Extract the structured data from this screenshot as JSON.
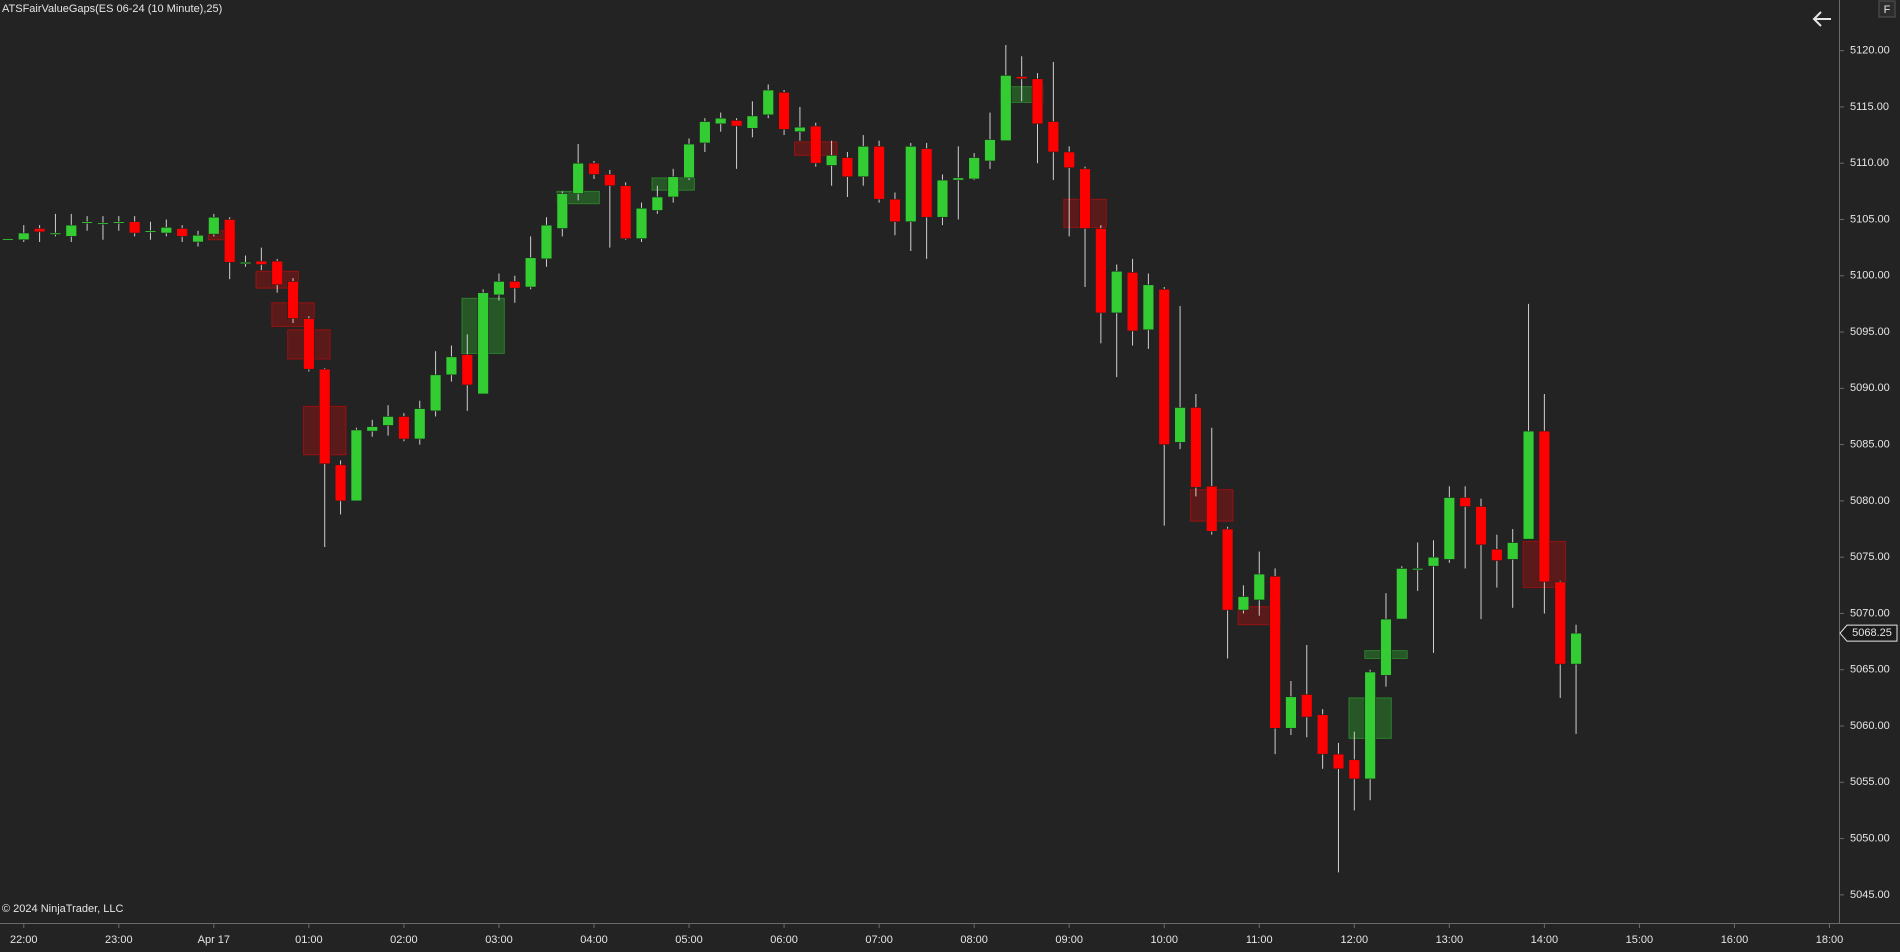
{
  "chart_data": {
    "type": "candlestick",
    "title": "ATSFairValueGaps(ES 06-24 (10 Minute),25)",
    "footer": "© 2024 NinjaTrader, LLC",
    "up_color": "#33cc33",
    "down_color": "#ff0000",
    "x": [
      21.8333,
      22,
      22.1667,
      22.3333,
      22.5,
      22.6667,
      22.8333,
      23,
      23.1667,
      23.3333,
      23.5,
      23.6667,
      23.8333,
      24,
      24.1667,
      24.3333,
      24.5,
      24.6667,
      24.8333,
      25,
      25.1667,
      25.3333,
      25.5,
      25.6667,
      25.8333,
      26,
      26.1667,
      26.3333,
      26.5,
      26.6667,
      26.8333,
      27,
      27.1667,
      27.3333,
      27.5,
      27.6667,
      27.8333,
      28,
      28.1667,
      28.3333,
      28.5,
      28.6667,
      28.8333,
      29,
      29.1667,
      29.3333,
      29.5,
      29.6667,
      29.8333,
      30,
      30.1667,
      30.3333,
      30.5,
      30.6667,
      30.8333,
      31,
      31.1667,
      31.3333,
      31.5,
      31.6667,
      31.8333,
      32,
      32.1667,
      32.3333,
      32.5,
      32.6667,
      32.8333,
      33,
      33.1667,
      33.3333,
      33.5,
      33.6667,
      33.8333,
      34,
      34.1667,
      34.3333,
      34.5,
      34.6667,
      34.8333,
      35,
      35.1667,
      35.3333,
      35.5,
      35.6667,
      35.8333,
      36,
      36.1667,
      36.3333,
      36.5,
      36.6667,
      36.8333,
      37,
      37.1667,
      37.3333,
      37.5,
      37.6667,
      37.8333,
      38,
      38.1667,
      38.3333
    ],
    "open": [
      5103.2,
      5103.2,
      5104.2,
      5103.8,
      5103.5,
      5104.8,
      5104.7,
      5104.8,
      5104.8,
      5104,
      5103.8,
      5104.2,
      5103,
      5103.7,
      5105,
      5101.2,
      5101.3,
      5101.3,
      5099.5,
      5096.2,
      5091.7,
      5083.2,
      5080,
      5086.2,
      5086.7,
      5087.5,
      5085.5,
      5088,
      5091.2,
      5093,
      5089.5,
      5098.3,
      5099.5,
      5099,
      5101.5,
      5104.2,
      5107.3,
      5110,
      5109,
      5108,
      5103.3,
      5105.8,
      5107,
      5108.7,
      5111.8,
      5113.5,
      5113.8,
      5113.1,
      5114.3,
      5116.3,
      5112.8,
      5113.3,
      5109.8,
      5110.5,
      5108.8,
      5111.5,
      5106.8,
      5104.8,
      5111.3,
      5105.2,
      5108.5,
      5108.6,
      5110.2,
      5112,
      5117.7,
      5117.5,
      5113.7,
      5111,
      5109.5,
      5104.2,
      5096.7,
      5100.3,
      5095.2,
      5098.8,
      5085.2,
      5088.3,
      5081.3,
      5077.5,
      5070.3,
      5071.2,
      5073.3,
      5059.8,
      5062.8,
      5061,
      5057.5,
      5057,
      5055.3,
      5064.5,
      5069.5,
      5074,
      5074.2,
      5074.8,
      5080.3,
      5079.5,
      5075.7,
      5074.8,
      5076.6,
      5086.2,
      5072.8,
      5065.5
    ],
    "high": [
      5103.3,
      5104.5,
      5104.5,
      5105.5,
      5105.5,
      5105.3,
      5105.3,
      5105.3,
      5105.3,
      5104.8,
      5105,
      5104.5,
      5104,
      5105.5,
      5105.2,
      5101.8,
      5102.5,
      5101.5,
      5099.8,
      5096.4,
      5091.8,
      5083.6,
      5086.5,
      5087.2,
      5088.5,
      5087.8,
      5088.9,
      5093.3,
      5093.8,
      5094.8,
      5098.8,
      5100.2,
      5100,
      5103.5,
      5105.2,
      5107.5,
      5111.7,
      5110.2,
      5109.4,
      5108.3,
      5106.5,
      5108,
      5109.5,
      5112.2,
      5114,
      5114.5,
      5114,
      5115.5,
      5117,
      5116.5,
      5115,
      5113.6,
      5112,
      5111,
      5112.5,
      5112,
      5107.4,
      5111.8,
      5111.8,
      5109,
      5111.5,
      5110.9,
      5114.5,
      5120.5,
      5119.5,
      5118,
      5119,
      5111.5,
      5109.7,
      5104.5,
      5101,
      5101.5,
      5100.2,
      5099,
      5097.3,
      5089.5,
      5086.5,
      5077.7,
      5072.5,
      5075.5,
      5074,
      5064,
      5067.2,
      5061.5,
      5058.5,
      5059.5,
      5065,
      5071.8,
      5074.2,
      5076.3,
      5076.5,
      5081.3,
      5081.3,
      5080.2,
      5077,
      5077.5,
      5097.5,
      5089.5,
      5072.9,
      5069
    ],
    "low": [
      5103.2,
      5103,
      5103,
      5103.5,
      5103,
      5104,
      5103.2,
      5104,
      5103.5,
      5103.2,
      5103.5,
      5103,
      5102.6,
      5103.5,
      5099.7,
      5100.8,
      5100.5,
      5098.5,
      5095.8,
      5091.5,
      5075.9,
      5078.8,
      5080,
      5085.7,
      5085.8,
      5085.3,
      5085,
      5087.5,
      5090.6,
      5088,
      5089.5,
      5097.8,
      5097.6,
      5098.8,
      5100.8,
      5103.5,
      5106.7,
      5108.6,
      5102.5,
      5103.2,
      5103,
      5105.5,
      5106.5,
      5108.5,
      5111,
      5112.8,
      5109.5,
      5112.3,
      5114,
      5112.5,
      5112,
      5109.7,
      5108,
      5107,
      5108,
      5106.5,
      5103.6,
      5102.2,
      5101.5,
      5104.5,
      5105,
      5108.5,
      5109.5,
      5112,
      5115.5,
      5110,
      5108.5,
      5103.5,
      5099,
      5094,
      5091,
      5093.8,
      5093.5,
      5077.8,
      5084.6,
      5080.4,
      5077,
      5066,
      5070,
      5069.8,
      5057.5,
      5059.2,
      5059,
      5056.2,
      5047,
      5052.5,
      5053.4,
      5063.5,
      5069.5,
      5072,
      5066.5,
      5074.5,
      5074,
      5069.5,
      5072.3,
      5070.5,
      5076.6,
      5070,
      5062.5,
      5059.3
    ],
    "close": [
      5103.3,
      5103.8,
      5103.9,
      5103.8,
      5104.5,
      5104.8,
      5104.7,
      5104.8,
      5103.8,
      5104,
      5104.3,
      5103.5,
      5103.6,
      5105.2,
      5101.2,
      5101.2,
      5101,
      5099.2,
      5096.2,
      5091.7,
      5083.3,
      5080,
      5086.3,
      5086.6,
      5087.5,
      5085.5,
      5088.2,
      5091.2,
      5092.8,
      5090.3,
      5098.5,
      5099.5,
      5098.9,
      5101.6,
      5104.5,
      5107.3,
      5110,
      5109,
      5108,
      5103.3,
      5106,
      5107,
      5108.8,
      5111.7,
      5113.7,
      5114,
      5113.3,
      5114.2,
      5116.5,
      5113,
      5113.2,
      5110,
      5110.7,
      5108.8,
      5111.5,
      5106.8,
      5104.8,
      5111.5,
      5105.2,
      5108.5,
      5108.7,
      5110.5,
      5112.1,
      5117.8,
      5117.5,
      5113.5,
      5111,
      5109.6,
      5104.2,
      5096.7,
      5100.4,
      5095.1,
      5099.2,
      5085,
      5088.3,
      5081.2,
      5077.3,
      5070.3,
      5071.5,
      5073.5,
      5059.8,
      5062.6,
      5060.8,
      5057.5,
      5056.2,
      5055.3,
      5064.8,
      5069.5,
      5074,
      5074,
      5075,
      5080.3,
      5079.5,
      5076.1,
      5074.7,
      5076.3,
      5086.2,
      5072.8,
      5065.5,
      5068.25
    ],
    "gaps": [
      {
        "direction": "down",
        "x0": 24,
        "x1": 24.1667,
        "top": 5104,
        "bottom": 5103.2
      },
      {
        "direction": "down",
        "x0": 24.5,
        "x1": 24.8333,
        "top": 5100.4,
        "bottom": 5098.9
      },
      {
        "direction": "down",
        "x0": 24.6667,
        "x1": 25,
        "top": 5097.6,
        "bottom": 5095.5
      },
      {
        "direction": "down",
        "x0": 24.8333,
        "x1": 25.1667,
        "top": 5095.2,
        "bottom": 5092.6
      },
      {
        "direction": "down",
        "x0": 25,
        "x1": 25.3333,
        "top": 5088.4,
        "bottom": 5084.1
      },
      {
        "direction": "up",
        "x0": 26.6667,
        "x1": 27,
        "top": 5098,
        "bottom": 5093.1
      },
      {
        "direction": "up",
        "x0": 27.6667,
        "x1": 28,
        "top": 5107.5,
        "bottom": 5106.4
      },
      {
        "direction": "up",
        "x0": 28.6667,
        "x1": 29,
        "top": 5108.7,
        "bottom": 5107.6
      },
      {
        "direction": "down",
        "x0": 30.1667,
        "x1": 30.5,
        "top": 5111.9,
        "bottom": 5110.7
      },
      {
        "direction": "up",
        "x0": 32.3333,
        "x1": 32.6667,
        "top": 5116.8,
        "bottom": 5115.4
      },
      {
        "direction": "down",
        "x0": 33,
        "x1": 33.3333,
        "top": 5106.8,
        "bottom": 5104.3
      },
      {
        "direction": "down",
        "x0": 34.3333,
        "x1": 34.6667,
        "top": 5081,
        "bottom": 5078.2
      },
      {
        "direction": "down",
        "x0": 34.8333,
        "x1": 35.1667,
        "top": 5070.6,
        "bottom": 5069
      },
      {
        "direction": "up",
        "x0": 36,
        "x1": 36.3333,
        "top": 5062.5,
        "bottom": 5058.9
      },
      {
        "direction": "up",
        "x0": 36.1667,
        "x1": 36.5,
        "top": 5066.7,
        "bottom": 5066
      },
      {
        "direction": "down",
        "x0": 37.8333,
        "x1": 38.1667,
        "top": 5076.4,
        "bottom": 5072.3
      }
    ],
    "last_price": 5068.25,
    "xlim": [
      21.75,
      42.2
    ],
    "xticks": [
      {
        "value": 22,
        "label": "22:00"
      },
      {
        "value": 23,
        "label": "23:00"
      },
      {
        "value": 24,
        "label": "Apr 17"
      },
      {
        "value": 25,
        "label": "01:00"
      },
      {
        "value": 26,
        "label": "02:00"
      },
      {
        "value": 27,
        "label": "03:00"
      },
      {
        "value": 28,
        "label": "04:00"
      },
      {
        "value": 29,
        "label": "05:00"
      },
      {
        "value": 30,
        "label": "06:00"
      },
      {
        "value": 31,
        "label": "07:00"
      },
      {
        "value": 32,
        "label": "08:00"
      },
      {
        "value": 33,
        "label": "09:00"
      },
      {
        "value": 34,
        "label": "10:00"
      },
      {
        "value": 35,
        "label": "11:00"
      },
      {
        "value": 36,
        "label": "12:00"
      },
      {
        "value": 37,
        "label": "13:00"
      },
      {
        "value": 38,
        "label": "14:00"
      },
      {
        "value": 39,
        "label": "15:00"
      },
      {
        "value": 40,
        "label": "16:00"
      },
      {
        "value": 42,
        "label": "18:00"
      }
    ],
    "ylim": [
      5042.5,
      5124.5
    ],
    "yticks": [
      {
        "value": 5045,
        "label": "5045.00"
      },
      {
        "value": 5050,
        "label": "5050.00"
      },
      {
        "value": 5055,
        "label": "5055.00"
      },
      {
        "value": 5060,
        "label": "5060.00"
      },
      {
        "value": 5065,
        "label": "5065.00"
      },
      {
        "value": 5070,
        "label": "5070.00"
      },
      {
        "value": 5075,
        "label": "5075.00"
      },
      {
        "value": 5080,
        "label": "5080.00"
      },
      {
        "value": 5085,
        "label": "5085.00"
      },
      {
        "value": 5090,
        "label": "5090.00"
      },
      {
        "value": 5095,
        "label": "5095.00"
      },
      {
        "value": 5100,
        "label": "5100.00"
      },
      {
        "value": 5105,
        "label": "5105.00"
      },
      {
        "value": 5110,
        "label": "5110.00"
      },
      {
        "value": 5115,
        "label": "5115.00"
      },
      {
        "value": 5120,
        "label": "5120.00"
      }
    ]
  },
  "toolbar": {
    "button": "F"
  }
}
